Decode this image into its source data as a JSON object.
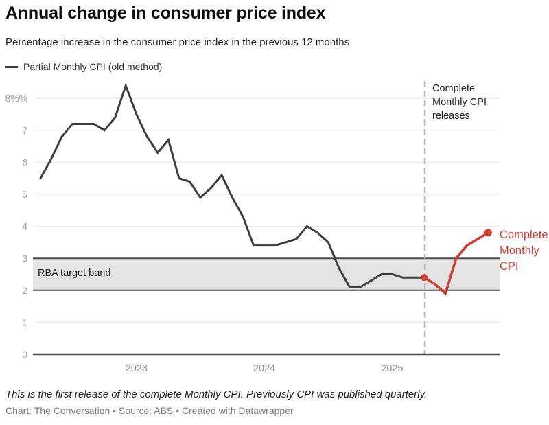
{
  "header": {
    "title": "Annual change in consumer price index",
    "subtitle": "Percentage increase in the consumer price index in the previous 12 months"
  },
  "legend": {
    "swatch_icon": "line-swatch",
    "label": "Partial Monthly CPI (old method)",
    "color": "#3d3d3d"
  },
  "annotations": {
    "event_label": "Complete Monthly CPI releases",
    "band_label": "RBA target band",
    "series_label": "Complete Monthly CPI"
  },
  "chart_data": {
    "type": "line",
    "title": "Annual change in consumer price index",
    "unit": "%",
    "ylim": [
      0,
      8.6
    ],
    "grid": "horizontal",
    "legend_position": "top-left",
    "y_ticks": [
      {
        "v": 0,
        "label": "0"
      },
      {
        "v": 1,
        "label": "1"
      },
      {
        "v": 2,
        "label": "2"
      },
      {
        "v": 3,
        "label": "3"
      },
      {
        "v": 4,
        "label": "4"
      },
      {
        "v": 5,
        "label": "5"
      },
      {
        "v": 6,
        "label": "6"
      },
      {
        "v": 7,
        "label": "7"
      },
      {
        "v": 8,
        "label": "8%%"
      }
    ],
    "x_ticks": [
      {
        "m": 9,
        "label": "2023"
      },
      {
        "m": 21,
        "label": "2024"
      },
      {
        "m": 33,
        "label": "2025"
      }
    ],
    "band": {
      "label": "RBA target band",
      "from": 2,
      "to": 3,
      "fill": "#e4e4e4",
      "edge": "#4c4c4c"
    },
    "event_line": {
      "label": "Complete Monthly CPI releases",
      "month": 36,
      "style": "dashed",
      "color": "#b4b4b4"
    },
    "series": [
      {
        "name": "Partial Monthly CPI (old method)",
        "color": "#3d3d3d",
        "width": 3,
        "points": [
          [
            0,
            5.5
          ],
          [
            1,
            6.1
          ],
          [
            2,
            6.8
          ],
          [
            3,
            7.2
          ],
          [
            4,
            7.2
          ],
          [
            5,
            7.2
          ],
          [
            6,
            7.0
          ],
          [
            7,
            7.4
          ],
          [
            8,
            8.4
          ],
          [
            9,
            7.5
          ],
          [
            10,
            6.8
          ],
          [
            11,
            6.3
          ],
          [
            12,
            6.7
          ],
          [
            13,
            5.5
          ],
          [
            14,
            5.4
          ],
          [
            15,
            4.9
          ],
          [
            16,
            5.2
          ],
          [
            17,
            5.6
          ],
          [
            18,
            4.9
          ],
          [
            19,
            4.3
          ],
          [
            20,
            3.4
          ],
          [
            21,
            3.4
          ],
          [
            22,
            3.4
          ],
          [
            23,
            3.5
          ],
          [
            24,
            3.6
          ],
          [
            25,
            4.0
          ],
          [
            26,
            3.8
          ],
          [
            27,
            3.5
          ],
          [
            28,
            2.7
          ],
          [
            29,
            2.1
          ],
          [
            30,
            2.1
          ],
          [
            31,
            2.3
          ],
          [
            32,
            2.5
          ],
          [
            33,
            2.5
          ],
          [
            34,
            2.4
          ],
          [
            35,
            2.4
          ],
          [
            36,
            2.4
          ]
        ]
      },
      {
        "name": "Complete Monthly CPI",
        "color": "#d23a2e",
        "width": 3.5,
        "points": [
          [
            36,
            2.4
          ],
          [
            37,
            2.2
          ],
          [
            38,
            1.9
          ],
          [
            39,
            3.0
          ],
          [
            40,
            3.4
          ],
          [
            41,
            3.6
          ],
          [
            42,
            3.8
          ]
        ],
        "markers": [
          {
            "m": 36,
            "v": 2.4,
            "r": 5
          },
          {
            "m": 42,
            "v": 3.8,
            "r": 5.5
          }
        ]
      }
    ]
  },
  "footer": {
    "note": "This is the first release of the complete Monthly CPI. Previously CPI was published quarterly.",
    "credit": "Chart: The Conversation • Source: ABS • Created with Datawrapper"
  }
}
